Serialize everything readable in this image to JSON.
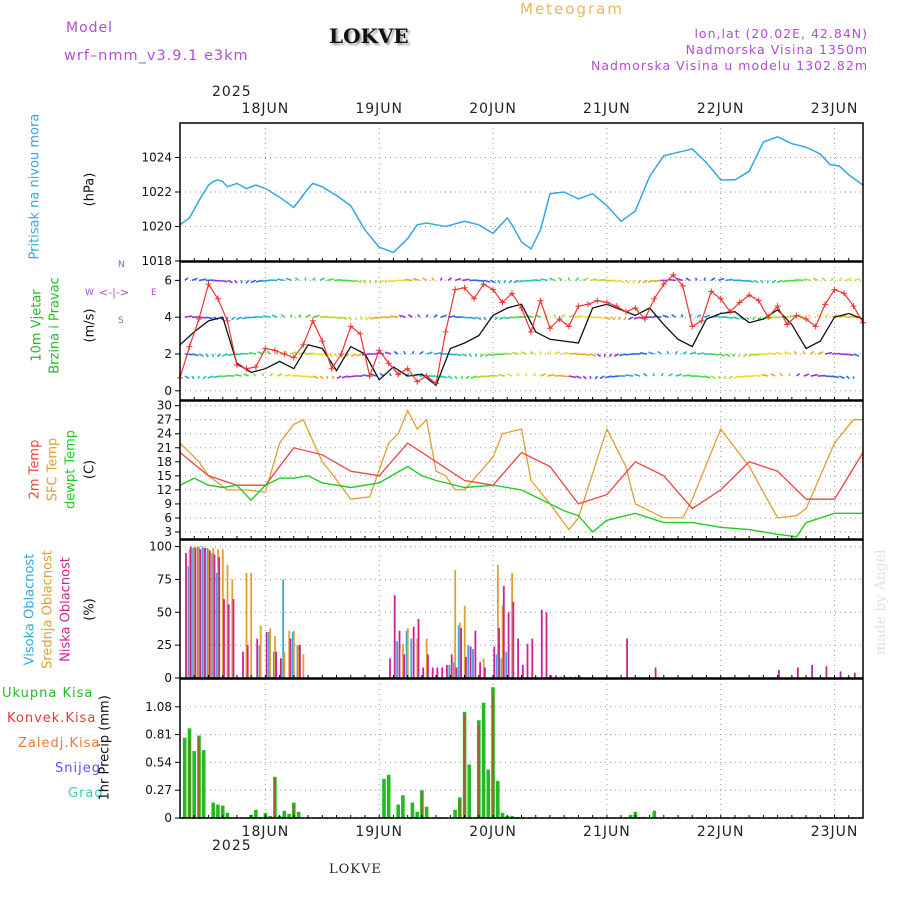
{
  "header": {
    "model_label": "Model",
    "model_name": "wrf–nmm_v3.9.1  e3km",
    "station": "LOKVE",
    "meteogram": "Meteogram",
    "lonlat": "lon,lat (20.02E, 42.84N)",
    "altitude": "Nadmorska Visina 1350m",
    "model_altitude": "Nadmorska Visina u modelu 1302.82m",
    "made_by": "made by Angel",
    "footer_station": "LOKVE"
  },
  "colors": {
    "pressure": "#33a8e0",
    "wind_speed": "#ee3333",
    "wind_mean": "#111111",
    "temp_2m": "#ee4444",
    "temp_sfc": "#e0a030",
    "dewpt": "#22cc22",
    "cloud_high": "#33a8e0",
    "cloud_mid": "#e0a030",
    "cloud_low": "#cc2299",
    "precip": "#22bb22",
    "precip_conv": "#cc4433",
    "axis_label_purple": "#b04fd0"
  },
  "chart_data": [
    {
      "panel": "pressure",
      "type": "line",
      "ylabel": "Pritisak na nivou mora",
      "unit": "(hPa)",
      "ylim": [
        1018,
        1026
      ],
      "yticks": [
        1018,
        1020,
        1022,
        1024
      ],
      "year_label": "2025",
      "x_day_labels": [
        "18JUN",
        "19JUN",
        "20JUN",
        "21JUN",
        "22JUN",
        "23JUN"
      ],
      "x_start_hour": -6,
      "x_end_hour": 138,
      "series": [
        {
          "name": "pressure",
          "x": [
            -6,
            -4,
            -2,
            0,
            1,
            2,
            3,
            4,
            6,
            8,
            10,
            12,
            15,
            18,
            21,
            22,
            24,
            27,
            30,
            33,
            36,
            39,
            42,
            44,
            46,
            48,
            50,
            54,
            57,
            60,
            63,
            64,
            66,
            68,
            70,
            72,
            75,
            78,
            81,
            84,
            87,
            90,
            93,
            96,
            99,
            102,
            105,
            108,
            111,
            114,
            117,
            120,
            123,
            126,
            129,
            131,
            133,
            135,
            138
          ],
          "y": [
            1020.1,
            1020.5,
            1021.5,
            1022.4,
            1022.6,
            1022.7,
            1022.6,
            1022.3,
            1022.5,
            1022.2,
            1022.4,
            1022.2,
            1021.7,
            1021.1,
            1022.2,
            1022.5,
            1022.3,
            1021.8,
            1021.2,
            1019.8,
            1018.8,
            1018.5,
            1019.3,
            1020.1,
            1020.2,
            1020.1,
            1020.0,
            1020.3,
            1020.1,
            1019.6,
            1020.5,
            1020.1,
            1019.1,
            1018.7,
            1019.8,
            1021.9,
            1022.0,
            1021.6,
            1021.9,
            1021.2,
            1020.3,
            1020.9,
            1022.9,
            1024.1,
            1024.3,
            1024.5,
            1023.7,
            1022.7,
            1022.7,
            1023.2,
            1024.9,
            1025.2,
            1024.8,
            1024.6,
            1024.2,
            1023.6,
            1023.5,
            1023.0,
            1022.4
          ]
        }
      ]
    },
    {
      "panel": "wind",
      "type": "line",
      "ylabel": "10m Vjetar",
      "ylabel2": "Brzina i Pravac",
      "unit": "(m/s)",
      "compass": [
        "N",
        "S",
        "W",
        "E"
      ],
      "ylim": [
        -0.5,
        7
      ],
      "yticks": [
        0,
        2,
        4,
        6
      ],
      "series": [
        {
          "name": "speed",
          "x": [
            -6,
            -4,
            -2,
            0,
            2,
            4,
            6,
            8,
            10,
            12,
            14,
            16,
            18,
            20,
            22,
            24,
            26,
            28,
            30,
            32,
            34,
            36,
            38,
            40,
            42,
            44,
            46,
            48,
            50,
            52,
            54,
            56,
            58,
            60,
            62,
            64,
            66,
            68,
            70,
            72,
            74,
            76,
            78,
            80,
            82,
            84,
            86,
            88,
            90,
            92,
            94,
            96,
            98,
            100,
            102,
            104,
            106,
            108,
            110,
            112,
            114,
            116,
            118,
            120,
            122,
            124,
            126,
            128,
            130,
            132,
            134,
            136,
            138
          ],
          "y": [
            0.7,
            2.4,
            3.9,
            5.8,
            5.0,
            3.8,
            1.4,
            1.2,
            1.3,
            2.3,
            2.2,
            2.0,
            1.8,
            2.5,
            3.8,
            2.7,
            1.2,
            2.0,
            3.5,
            3.1,
            0.8,
            2.2,
            1.5,
            0.9,
            1.2,
            0.5,
            0.8,
            0.4,
            3.2,
            5.5,
            5.6,
            5.0,
            5.8,
            5.5,
            4.8,
            5.3,
            4.5,
            3.2,
            4.9,
            3.4,
            3.9,
            3.5,
            4.6,
            4.7,
            4.9,
            4.8,
            4.6,
            4.3,
            4.5,
            3.9,
            5.0,
            5.8,
            6.3,
            5.7,
            3.5,
            3.8,
            5.4,
            5.0,
            4.3,
            4.8,
            5.2,
            4.9,
            4.0,
            4.6,
            3.6,
            4.1,
            3.9,
            3.5,
            4.7,
            5.5,
            5.3,
            4.6,
            3.7
          ]
        },
        {
          "name": "mean",
          "x": [
            -6,
            -3,
            0,
            3,
            6,
            9,
            12,
            15,
            18,
            21,
            24,
            27,
            30,
            33,
            36,
            39,
            42,
            45,
            48,
            51,
            54,
            57,
            60,
            63,
            66,
            69,
            72,
            75,
            78,
            81,
            84,
            87,
            90,
            93,
            96,
            99,
            102,
            105,
            108,
            111,
            114,
            117,
            120,
            123,
            126,
            129,
            132,
            135,
            138
          ],
          "y": [
            2.5,
            3.2,
            3.8,
            4.0,
            1.5,
            1.0,
            1.2,
            1.6,
            1.2,
            2.5,
            2.3,
            1.1,
            2.4,
            2.0,
            0.6,
            1.3,
            0.8,
            0.9,
            0.3,
            2.3,
            2.6,
            3.0,
            4.1,
            4.5,
            4.7,
            3.2,
            2.8,
            2.7,
            2.6,
            4.5,
            4.7,
            4.4,
            4.1,
            4.5,
            3.6,
            2.8,
            2.4,
            3.9,
            4.2,
            4.3,
            3.7,
            3.9,
            4.4,
            3.6,
            2.3,
            2.7,
            4.0,
            4.2,
            3.9
          ]
        }
      ]
    },
    {
      "panel": "temperature",
      "type": "line",
      "ylabels": [
        "2m Temp",
        "SFC Temp",
        "dewpt Temp"
      ],
      "unit": "(C)",
      "ylim": [
        1.5,
        31
      ],
      "yticks": [
        3,
        6,
        9,
        12,
        15,
        18,
        21,
        24,
        27,
        30
      ],
      "series": [
        {
          "name": "2m Temp",
          "x": [
            -6,
            0,
            6,
            12,
            18,
            24,
            30,
            36,
            42,
            48,
            54,
            60,
            66,
            72,
            78,
            84,
            90,
            96,
            102,
            108,
            114,
            120,
            126,
            132,
            138
          ],
          "y": [
            20,
            15,
            13,
            13,
            21,
            19.5,
            16,
            15,
            22,
            18,
            14,
            13,
            20,
            17,
            9,
            11,
            18,
            15,
            8,
            12,
            18,
            16,
            10,
            10,
            20
          ]
        },
        {
          "name": "SFC Temp",
          "x": [
            -6,
            -2,
            0,
            4,
            8,
            12,
            15,
            18,
            20,
            24,
            26,
            30,
            34,
            38,
            40,
            42,
            44,
            46,
            48,
            50,
            52,
            54,
            60,
            62,
            66,
            68,
            72,
            76,
            78,
            84,
            88,
            90,
            96,
            100,
            102,
            108,
            114,
            120,
            124,
            126,
            132,
            136,
            138
          ],
          "y": [
            22,
            18,
            15,
            12,
            12,
            11.5,
            22,
            26,
            27,
            18,
            15.5,
            10,
            10.5,
            22,
            24,
            29,
            25,
            27,
            16,
            15,
            12,
            12,
            19,
            24,
            25,
            14,
            9,
            3.5,
            6,
            25,
            17,
            9,
            6,
            6,
            10,
            25,
            17,
            6,
            6.5,
            8,
            22,
            27,
            27
          ]
        },
        {
          "name": "dewpt Temp",
          "x": [
            -6,
            -3,
            0,
            3,
            6,
            9,
            12,
            15,
            18,
            21,
            24,
            30,
            36,
            42,
            45,
            48,
            54,
            60,
            66,
            72,
            75,
            78,
            81,
            84,
            90,
            96,
            102,
            108,
            114,
            120,
            124,
            126,
            132,
            138
          ],
          "y": [
            13,
            14.5,
            13,
            12.5,
            13,
            9.8,
            13,
            14.5,
            14.5,
            15,
            13.5,
            12.5,
            13.5,
            17,
            15,
            14,
            12.5,
            13,
            12,
            9,
            7.5,
            6.5,
            3,
            5.5,
            7,
            5,
            5,
            4,
            3.5,
            2.5,
            2,
            5,
            7,
            7
          ]
        }
      ]
    },
    {
      "panel": "clouds",
      "type": "bar",
      "ylabels": [
        "Visoka Oblacnost",
        "Srednja Oblacnost",
        "Niska Oblacnost"
      ],
      "unit": "(%)",
      "ylim": [
        0,
        105
      ],
      "yticks": [
        0,
        25,
        50,
        75,
        100
      ],
      "series": [
        {
          "name": "high",
          "x": [
            -4,
            -3,
            -2,
            -1,
            0,
            1,
            2,
            11,
            13,
            14,
            16,
            18,
            19,
            40,
            42,
            43,
            51,
            52,
            53,
            55,
            56,
            61,
            62,
            63
          ],
          "y": [
            85,
            99,
            100,
            100,
            99,
            95,
            80,
            25,
            35,
            20,
            75,
            35,
            25,
            28,
            36,
            30,
            10,
            12,
            40,
            25,
            22,
            18,
            15,
            20
          ]
        },
        {
          "name": "mid",
          "x": [
            -4,
            -3,
            -2,
            -1,
            0,
            1,
            2,
            3,
            4,
            5,
            8,
            9,
            11,
            13,
            14,
            16,
            17,
            18,
            19,
            20,
            41,
            42,
            44,
            46,
            52,
            53,
            54,
            58,
            61,
            62,
            64
          ],
          "y": [
            98,
            100,
            100,
            99,
            98,
            99,
            98,
            98,
            86,
            75,
            80,
            80,
            40,
            38,
            32,
            20,
            36,
            36,
            25,
            18,
            26,
            38,
            30,
            30,
            82,
            42,
            55,
            15,
            86,
            55,
            80
          ]
        },
        {
          "name": "low",
          "x": [
            -5,
            -4,
            -3,
            -2,
            -1,
            0,
            1,
            2,
            3,
            4,
            5,
            6,
            7,
            8,
            10,
            12,
            14,
            15,
            17,
            19,
            38,
            39,
            40,
            41,
            43,
            44,
            45,
            46,
            47,
            48,
            49,
            50,
            51,
            52,
            53,
            54,
            55,
            56,
            57,
            58,
            60,
            61,
            62,
            63,
            64,
            65,
            66,
            67,
            68,
            70,
            71,
            72,
            73,
            74,
            75,
            76,
            77,
            78,
            88,
            94,
            120,
            124,
            127,
            130,
            133,
            136
          ],
          "y": [
            95,
            100,
            99,
            98,
            99,
            97,
            94,
            92,
            60,
            56,
            60,
            0,
            20,
            25,
            30,
            35,
            20,
            15,
            30,
            25,
            15,
            63,
            36,
            18,
            39,
            45,
            8,
            18,
            8,
            8,
            8,
            10,
            18,
            8,
            38,
            16,
            24,
            36,
            12,
            8,
            24,
            38,
            70,
            50,
            58,
            30,
            10,
            26,
            30,
            52,
            50,
            2,
            2,
            1,
            1,
            1,
            1,
            2,
            30,
            8,
            6,
            8,
            10,
            9,
            5,
            4
          ]
        }
      ]
    },
    {
      "panel": "precip",
      "type": "bar",
      "ylabels": [
        "Ukupna Kisa",
        "Konvek.Kisa",
        "Zaledj.Kisa",
        "Snijeg",
        "Grad"
      ],
      "unit": "1hr Precip (mm)",
      "ylim": [
        0,
        1.35
      ],
      "yticks": [
        0,
        0.27,
        0.54,
        0.81,
        1.08
      ],
      "series": [
        {
          "name": "total",
          "x": [
            -5,
            -4,
            -3,
            -2,
            -1,
            1,
            2,
            3,
            4,
            9,
            10,
            12,
            13,
            14,
            15,
            16,
            17,
            18,
            19,
            37,
            38,
            40,
            41,
            43,
            44,
            45,
            46,
            52,
            53,
            54,
            55,
            57,
            58,
            59,
            60,
            61,
            62,
            63,
            64,
            65,
            66,
            89,
            90,
            91,
            92,
            94
          ],
          "y": [
            0.78,
            0.87,
            0.65,
            0.8,
            0.66,
            0.15,
            0.13,
            0.12,
            0.05,
            0.03,
            0.08,
            0.05,
            0.02,
            0.4,
            0.02,
            0.07,
            0.04,
            0.15,
            0.06,
            0.38,
            0.42,
            0.13,
            0.22,
            0.15,
            0.06,
            0.27,
            0.11,
            0.08,
            0.2,
            1.03,
            0.52,
            0.95,
            1.12,
            0.47,
            1.27,
            0.36,
            0.05,
            0.02,
            0.02,
            0.01,
            0.01,
            0.03,
            0.06,
            0.01,
            0.01,
            0.07
          ]
        },
        {
          "name": "convective",
          "x": [
            -4,
            -2,
            14,
            18,
            45,
            53,
            54,
            57,
            60
          ],
          "y": [
            0.75,
            0.78,
            0.38,
            0.12,
            0.25,
            0.18,
            1.0,
            0.9,
            1.2
          ]
        }
      ]
    }
  ]
}
